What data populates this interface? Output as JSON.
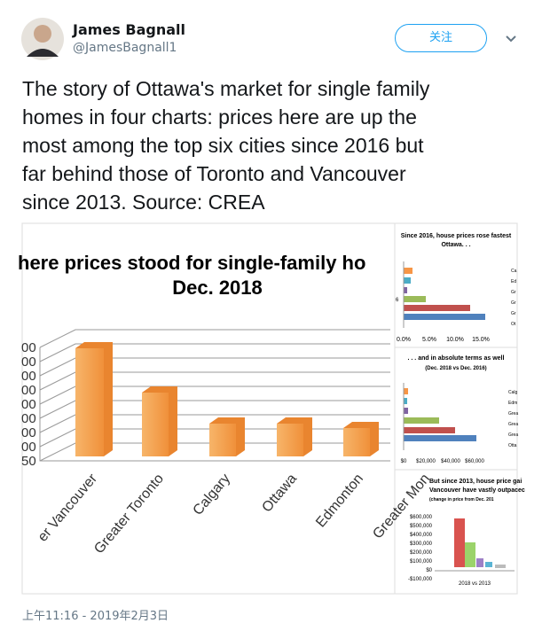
{
  "header": {
    "name": "James Bagnall",
    "handle": "@JamesBagnall1",
    "follow_button": "关注"
  },
  "tweet": {
    "lines": [
      "The story of Ottawa's market for single family",
      "homes in four charts: prices here are up the",
      "most among the top six cities since 2016 but",
      "far behind those of Toronto and Vancouver",
      "since 2013.  Source: CREA"
    ]
  },
  "images": {
    "main": {
      "title_lines": [
        "here prices stood for single-family ho",
        "Dec. 2018"
      ],
      "axis_labels": [
        "00",
        "00",
        "00",
        "00",
        "00",
        "00",
        "00",
        "00",
        "50"
      ],
      "categories": [
        "er Vancouver",
        "Greater Toronto",
        "Calgary",
        "Ottawa",
        "Edmonton",
        "Greater Mon"
      ]
    },
    "side": [
      {
        "title_lines": [
          "Since 2016, house prices rose fastest",
          "Ottawa. . ."
        ],
        "ticks": [
          "0.0%",
          "5.0%",
          "10.0%",
          "15.0%"
        ],
        "legend": [
          "Ca",
          "Ed",
          "Gr",
          "Gr",
          "Gr",
          "Ot"
        ],
        "side_label": "6"
      },
      {
        "title_lines": [
          ". . . and in absolute terms as well",
          "(Dec. 2018 vs Dec. 2016)"
        ],
        "ticks": [
          "$0",
          "$20,000",
          "$40,000",
          "$60,000"
        ],
        "legend": [
          "Calg",
          "Edm",
          "Grea",
          "Grea",
          "Grea",
          "Otta"
        ]
      },
      {
        "title_lines": [
          "But since 2013, house price gai",
          "Vancouver have vastly outpacec",
          "(change in price from Dec. 201"
        ],
        "ticks": [
          "$600,000",
          "$500,000",
          "$400,000",
          "$300,000",
          "$200,000",
          "$100,000",
          "$0",
          "-$100,000"
        ],
        "x_label": "2018 vs 2013"
      }
    ]
  },
  "timestamp": "上午11:16 - 2019年2月3日"
}
